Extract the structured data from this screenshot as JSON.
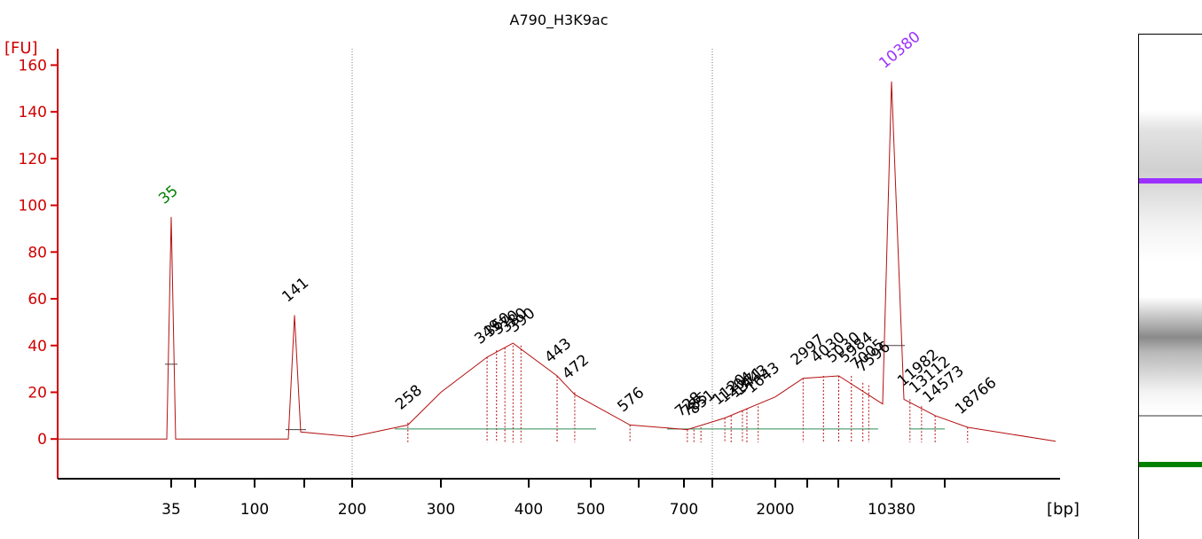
{
  "colors": {
    "axis": "#d10000",
    "trace": "#b41010",
    "marker_peak": "#008000",
    "upper_marker": "#9b30ff",
    "baseline": "#2e8b57",
    "text": "#000000"
  },
  "chart_data": {
    "type": "line",
    "title": "A790_H3K9ac",
    "ylabel": "[FU]",
    "xlabel": "[bp]",
    "ylim": [
      -17,
      167
    ],
    "yticks": [
      0,
      20,
      40,
      60,
      80,
      100,
      120,
      140,
      160
    ],
    "x_tick_labels": [
      "35",
      "100",
      "200",
      "300",
      "400",
      "500",
      "700",
      "2000",
      "10380"
    ],
    "series": [
      {
        "values": [
          {
            "bp": 35,
            "fu": 0
          },
          {
            "bp": 35,
            "fu": 95
          },
          {
            "bp": 35,
            "fu": 0
          },
          {
            "bp": 141,
            "fu": 0
          },
          {
            "bp": 141,
            "fu": 53
          },
          {
            "bp": 141,
            "fu": 3
          },
          {
            "bp": 200,
            "fu": 1
          },
          {
            "bp": 258,
            "fu": 6
          },
          {
            "bp": 300,
            "fu": 20
          },
          {
            "bp": 349,
            "fu": 35
          },
          {
            "bp": 380,
            "fu": 41
          },
          {
            "bp": 443,
            "fu": 27
          },
          {
            "bp": 472,
            "fu": 19
          },
          {
            "bp": 576,
            "fu": 6
          },
          {
            "bp": 728,
            "fu": 4
          },
          {
            "bp": 1120,
            "fu": 9
          },
          {
            "bp": 2000,
            "fu": 18
          },
          {
            "bp": 2997,
            "fu": 26
          },
          {
            "bp": 5030,
            "fu": 27
          },
          {
            "bp": 7000,
            "fu": 15
          },
          {
            "bp": 10380,
            "fu": 153
          },
          {
            "bp": 11982,
            "fu": 17
          },
          {
            "bp": 14573,
            "fu": 10
          },
          {
            "bp": 18766,
            "fu": 5
          },
          {
            "bp": 25000,
            "fu": -1
          }
        ]
      }
    ],
    "peak_labels": [
      {
        "label": "35",
        "fu": 95,
        "kind": "lower_marker"
      },
      {
        "label": "141",
        "fu": 53,
        "kind": "peak"
      },
      {
        "label": "258",
        "fu": 7,
        "kind": "peak"
      },
      {
        "label": "349",
        "fu": 35,
        "kind": "peak"
      },
      {
        "label": "360",
        "fu": 38,
        "kind": "peak"
      },
      {
        "label": "370",
        "fu": 39,
        "kind": "peak"
      },
      {
        "label": "380",
        "fu": 40,
        "kind": "peak"
      },
      {
        "label": "390",
        "fu": 40,
        "kind": "peak"
      },
      {
        "label": "443",
        "fu": 27,
        "kind": "peak"
      },
      {
        "label": "472",
        "fu": 20,
        "kind": "peak"
      },
      {
        "label": "576",
        "fu": 6,
        "kind": "peak"
      },
      {
        "label": "728",
        "fu": 4,
        "kind": "peak"
      },
      {
        "label": "785",
        "fu": 4,
        "kind": "peak"
      },
      {
        "label": "851",
        "fu": 5,
        "kind": "peak"
      },
      {
        "label": "1120",
        "fu": 9,
        "kind": "peak"
      },
      {
        "label": "1204",
        "fu": 10,
        "kind": "peak"
      },
      {
        "label": "1371",
        "fu": 12,
        "kind": "peak"
      },
      {
        "label": "1443",
        "fu": 13,
        "kind": "peak"
      },
      {
        "label": "1643",
        "fu": 14,
        "kind": "peak"
      },
      {
        "label": "2997",
        "fu": 26,
        "kind": "peak"
      },
      {
        "label": "4030",
        "fu": 27,
        "kind": "peak"
      },
      {
        "label": "5030",
        "fu": 27,
        "kind": "peak"
      },
      {
        "label": "5984",
        "fu": 27,
        "kind": "peak"
      },
      {
        "label": "7005",
        "fu": 24,
        "kind": "peak"
      },
      {
        "label": "7596",
        "fu": 23,
        "kind": "peak"
      },
      {
        "label": "10380",
        "fu": 153,
        "kind": "upper_marker"
      },
      {
        "label": "11982",
        "fu": 17,
        "kind": "peak"
      },
      {
        "label": "13112",
        "fu": 14,
        "kind": "peak"
      },
      {
        "label": "14573",
        "fu": 10,
        "kind": "peak"
      },
      {
        "label": "18766",
        "fu": 5,
        "kind": "peak"
      }
    ]
  }
}
